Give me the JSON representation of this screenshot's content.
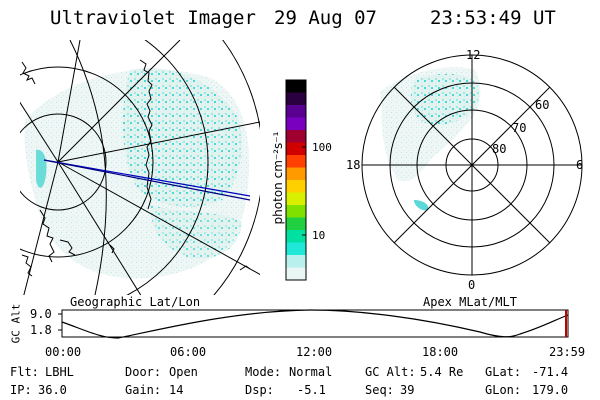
{
  "header": {
    "instrument": "Ultraviolet Imager",
    "date": "29 Aug 07",
    "time": "23:53:49 UT"
  },
  "geo_panel": {
    "label": "Geographic Lat/Lon"
  },
  "apex_panel": {
    "label": "Apex MLat/MLT",
    "mlt_labels": {
      "top": "12",
      "right": "6",
      "bottom": "0",
      "left": "18"
    },
    "mlat_labels": [
      "60",
      "70",
      "80"
    ]
  },
  "colorbar": {
    "label": "photon cm⁻²s⁻¹",
    "ticks": [
      "100",
      "10"
    ],
    "colors_top_to_bottom": [
      "#000000",
      "#2a0040",
      "#5a0090",
      "#7a00c0",
      "#a00030",
      "#d00000",
      "#ff4000",
      "#ff9a00",
      "#ffd000",
      "#d8f000",
      "#80e000",
      "#20d040",
      "#00e0a0",
      "#20e8d8",
      "#b8f0ee",
      "#e8f6f4"
    ]
  },
  "altitude_plot": {
    "ylabel": "GC Alt",
    "y_ticks": [
      "9.0",
      "1.8"
    ],
    "x_ticks": [
      "00:00",
      "06:00",
      "12:00",
      "18:00",
      "23:59"
    ]
  },
  "status": {
    "row1": [
      {
        "key": "Flt:",
        "value": "LBHL"
      },
      {
        "key": "Door:",
        "value": "Open"
      },
      {
        "key": "Mode:",
        "value": "Normal"
      },
      {
        "key": "GC Alt:",
        "value": "5.4 Re"
      },
      {
        "key": "GLat:",
        "value": "-71.4"
      }
    ],
    "row2": [
      {
        "key": "IP:",
        "value": "36.0"
      },
      {
        "key": "Gain:",
        "value": "14"
      },
      {
        "key": "Dsp:",
        "value": "-5.1"
      },
      {
        "key": "Seq:",
        "value": "39"
      },
      {
        "key": "GLon:",
        "value": "179.0"
      }
    ]
  }
}
